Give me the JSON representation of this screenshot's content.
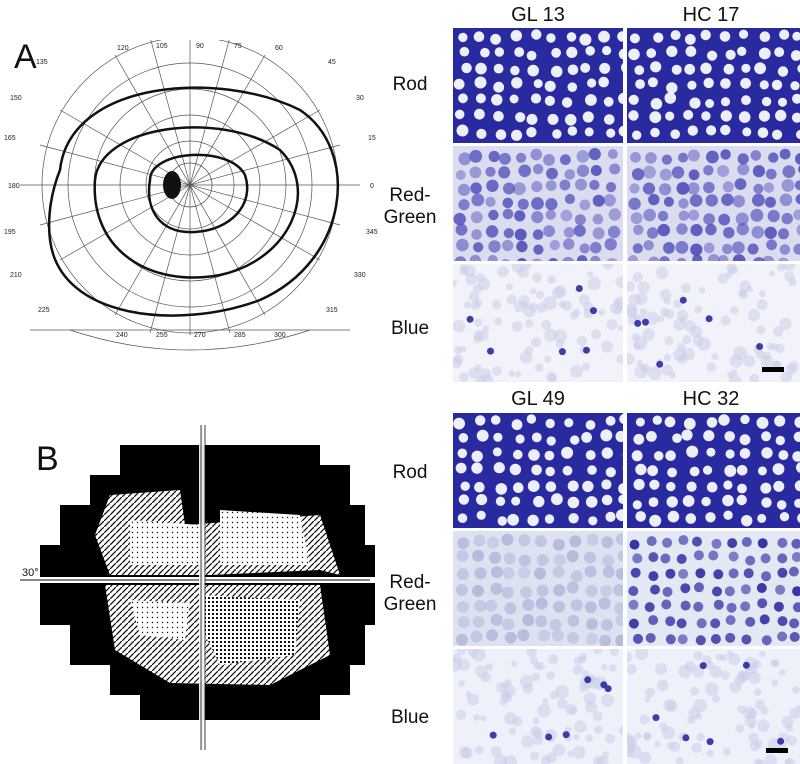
{
  "panels": {
    "A": {
      "letter": "A",
      "perimetry": {
        "angles_top": [
          "120",
          "105",
          "90",
          "75",
          "60",
          "45",
          "135",
          "150",
          "165",
          "30",
          "15"
        ],
        "angle_left": "180",
        "angle_right": "0",
        "angles_bottom": [
          "195",
          "210",
          "225",
          "240",
          "255",
          "270",
          "285",
          "300",
          "315",
          "330",
          "345"
        ]
      },
      "columns": [
        "GL 13",
        "HC 17"
      ],
      "rows": [
        "Rod",
        "Red-\nGreen",
        "Blue"
      ]
    },
    "B": {
      "letter": "B",
      "axis_label": "30°",
      "columns": [
        "GL 49",
        "HC 32"
      ],
      "rows": [
        "Rod",
        "Red-\nGreen",
        "Blue"
      ]
    }
  },
  "colors": {
    "rod_bg": "#2a2aa0",
    "rg_bg": "#dcdcf0",
    "blue_bg": "#f2f2fa",
    "cell_dark": "#3a3ab0"
  }
}
